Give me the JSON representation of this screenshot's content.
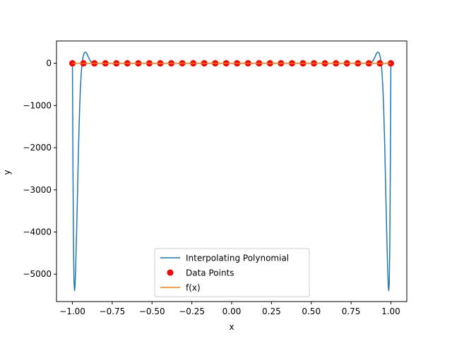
{
  "chart_data": {
    "type": "line",
    "title": "",
    "xlabel": "x",
    "ylabel": "y",
    "xlim": [
      -1.1,
      1.1
    ],
    "ylim": [
      -5650,
      530
    ],
    "x_ticks": [
      -1.0,
      -0.75,
      -0.5,
      -0.25,
      0.0,
      0.25,
      0.5,
      0.75,
      1.0
    ],
    "x_tick_labels": [
      "−1.00",
      "−0.75",
      "−0.50",
      "−0.25",
      "0.00",
      "0.25",
      "0.50",
      "0.75",
      "1.00"
    ],
    "y_ticks": [
      0,
      -1000,
      -2000,
      -3000,
      -4000,
      -5000
    ],
    "y_tick_labels": [
      "0",
      "−1000",
      "−2000",
      "−3000",
      "−4000",
      "−5000"
    ],
    "grid": false,
    "legend_position": "lower center",
    "series": [
      {
        "name": "Interpolating Polynomial",
        "kind": "line",
        "color": "#1f77b4",
        "x": [
          -1.0,
          -0.9965,
          -0.993,
          -0.99,
          -0.987,
          -0.984,
          -0.98,
          -0.975,
          -0.97,
          -0.965,
          -0.96,
          -0.955,
          -0.95,
          -0.945,
          -0.94,
          -0.935,
          -0.93,
          -0.925,
          -0.92,
          -0.915,
          -0.91,
          -0.905,
          -0.9,
          -0.895,
          -0.89,
          -0.885,
          -0.88,
          -0.875,
          -0.87,
          -0.865,
          -0.86,
          -0.85,
          -0.84,
          -0.8,
          -0.5,
          0.0,
          0.5,
          0.8,
          0.84,
          0.85,
          0.86,
          0.865,
          0.87,
          0.875,
          0.88,
          0.885,
          0.89,
          0.895,
          0.9,
          0.905,
          0.91,
          0.915,
          0.92,
          0.925,
          0.93,
          0.935,
          0.94,
          0.945,
          0.95,
          0.955,
          0.96,
          0.965,
          0.97,
          0.975,
          0.98,
          0.984,
          0.987,
          0.99,
          0.993,
          0.9965,
          1.0
        ],
        "y": [
          0,
          -2500,
          -4400,
          -5200,
          -5390,
          -5300,
          -4900,
          -4200,
          -3400,
          -2550,
          -1750,
          -1100,
          -600,
          -250,
          -30,
          110,
          200,
          250,
          265,
          260,
          235,
          195,
          150,
          110,
          75,
          45,
          25,
          15,
          10,
          8,
          5,
          3,
          1,
          0,
          0,
          0,
          0,
          0,
          1,
          3,
          5,
          8,
          10,
          15,
          25,
          45,
          75,
          110,
          150,
          195,
          235,
          260,
          265,
          250,
          200,
          110,
          -30,
          -250,
          -600,
          -1100,
          -1750,
          -2550,
          -3400,
          -4200,
          -4900,
          -5300,
          -5390,
          -5200,
          -4400,
          -2500,
          0
        ]
      },
      {
        "name": "Data Points",
        "kind": "scatter",
        "color": "#ff0000",
        "x": [
          -1.0,
          -0.931,
          -0.862,
          -0.793,
          -0.724,
          -0.655,
          -0.586,
          -0.517,
          -0.448,
          -0.379,
          -0.31,
          -0.241,
          -0.172,
          -0.103,
          -0.034,
          0.034,
          0.103,
          0.172,
          0.241,
          0.31,
          0.379,
          0.448,
          0.517,
          0.586,
          0.655,
          0.724,
          0.793,
          0.862,
          0.931,
          1.0
        ],
        "y": [
          0.04,
          0.04,
          0.05,
          0.06,
          0.07,
          0.09,
          0.1,
          0.13,
          0.17,
          0.22,
          0.29,
          0.41,
          0.57,
          0.79,
          0.97,
          0.97,
          0.79,
          0.57,
          0.41,
          0.29,
          0.22,
          0.17,
          0.13,
          0.1,
          0.09,
          0.07,
          0.06,
          0.05,
          0.04,
          0.04
        ]
      },
      {
        "name": "f(x)",
        "kind": "line",
        "color": "#ff7f0e",
        "x": [
          -1.0,
          -0.5,
          0.0,
          0.5,
          1.0
        ],
        "y": [
          0.04,
          0.14,
          1.0,
          0.14,
          0.04
        ]
      }
    ]
  }
}
